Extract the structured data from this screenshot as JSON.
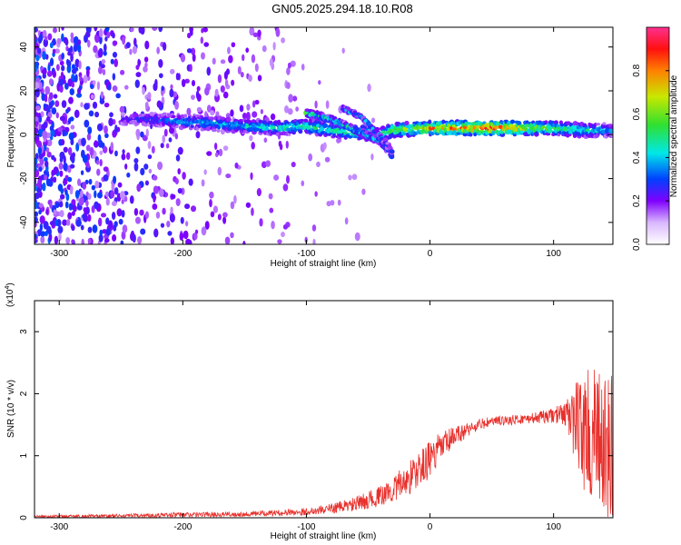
{
  "title": "GN05.2025.294.18.10.R08",
  "colors": {
    "snr_line": "#e8302c",
    "spectrogram_purple": "#7f00ff",
    "spectrogram_blue": "#0040ff",
    "spectrogram_cyan": "#00e0e0",
    "spectrogram_green": "#40e040",
    "spectrogram_red": "#ff2020"
  },
  "chart_data": [
    {
      "type": "heatmap",
      "xlabel": "Height of straight line (km)",
      "ylabel": "Frequency (Hz)",
      "xlim": [
        -320,
        148
      ],
      "ylim": [
        -50,
        49
      ],
      "xticks": [
        -300,
        -200,
        -100,
        0,
        100
      ],
      "yticks": [
        -40,
        -20,
        0,
        20,
        40
      ],
      "colorbar": {
        "label": "Normalized spectral amplitude",
        "range": [
          0,
          1
        ],
        "ticks": [
          "0.0",
          "0.2",
          "0.4",
          "0.6",
          "0.8"
        ],
        "tick_values": [
          0,
          0.2,
          0.4,
          0.6,
          0.8
        ]
      },
      "bands": [
        {
          "x": [
            -250,
            -230,
            -200,
            -150,
            -120,
            -100,
            -80,
            -60,
            -40,
            -30,
            0,
            50,
            100,
            130,
            148
          ],
          "freq": [
            7,
            7,
            6,
            4,
            3,
            4,
            2,
            1,
            0,
            2,
            3,
            3,
            3,
            2,
            2
          ],
          "width": 6,
          "amp": [
            0.25,
            0.3,
            0.4,
            0.45,
            0.5,
            0.55,
            0.5,
            0.6,
            0.55,
            0.6,
            0.8,
            0.95,
            0.6,
            0.5,
            0.35
          ]
        },
        {
          "x": [
            -100,
            -80,
            -60,
            -40,
            -30
          ],
          "freq": [
            10,
            7,
            2,
            -3,
            -10
          ],
          "width": 3,
          "amp": [
            0.55,
            0.5,
            0.5,
            0.45,
            0.35
          ]
        },
        {
          "x": [
            -70,
            -55,
            -45,
            -35,
            -30
          ],
          "freq": [
            12,
            8,
            2,
            -4,
            -8
          ],
          "width": 2,
          "amp": [
            0.45,
            0.45,
            0.4,
            0.35,
            0.3
          ]
        }
      ]
    },
    {
      "type": "line",
      "xlabel": "Height of straight line (km)",
      "ylabel": "SNR (10 * v/v)",
      "y_scale_label": "(x10",
      "y_scale_exp": "4",
      "y_scale_close": ")",
      "xlim": [
        -320,
        148
      ],
      "ylim": [
        0,
        3.5
      ],
      "xticks": [
        -300,
        -200,
        -100,
        0,
        100
      ],
      "yticks": [
        0,
        1,
        2,
        3
      ],
      "series": [
        {
          "x": [
            -320,
            -250,
            -200,
            -150,
            -120,
            -100,
            -80,
            -60,
            -40,
            -30,
            -20,
            -10,
            0,
            10,
            20,
            30,
            40,
            50,
            60,
            70,
            80,
            90,
            100,
            110,
            115,
            120,
            125,
            130,
            135,
            140,
            145,
            148
          ],
          "y": [
            0.02,
            0.03,
            0.05,
            0.06,
            0.08,
            0.1,
            0.15,
            0.22,
            0.35,
            0.45,
            0.6,
            0.75,
            0.95,
            1.15,
            1.3,
            1.42,
            1.5,
            1.55,
            1.57,
            1.58,
            1.6,
            1.62,
            1.65,
            1.68,
            1.6,
            1.5,
            1.4,
            1.3,
            1.2,
            1.1,
            1.0,
            1.0
          ],
          "noise": [
            0.02,
            0.03,
            0.04,
            0.04,
            0.05,
            0.06,
            0.08,
            0.12,
            0.16,
            0.2,
            0.28,
            0.3,
            0.3,
            0.25,
            0.18,
            0.12,
            0.1,
            0.08,
            0.08,
            0.08,
            0.08,
            0.1,
            0.12,
            0.2,
            0.5,
            0.8,
            1.0,
            1.1,
            1.2,
            1.25,
            1.3,
            1.3
          ]
        }
      ]
    }
  ]
}
